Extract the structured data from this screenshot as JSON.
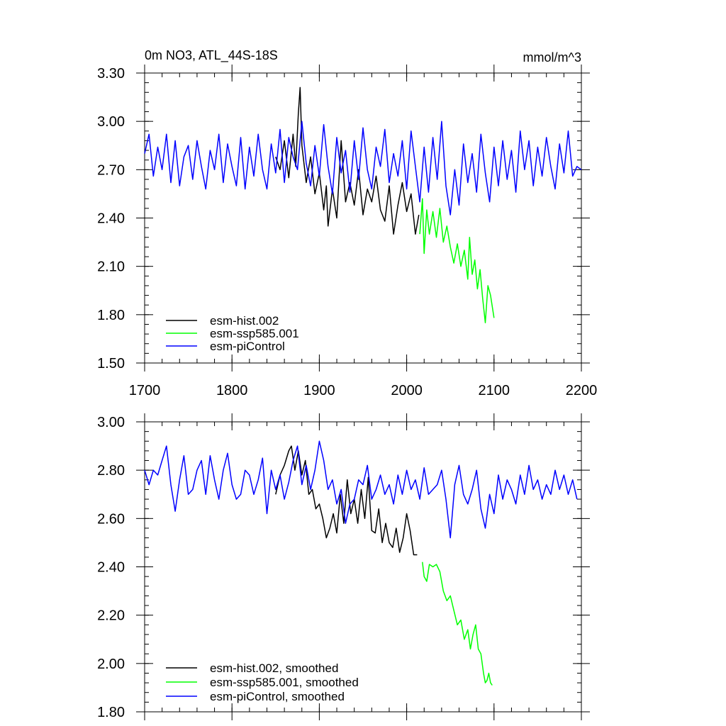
{
  "title": "0m NO3, ATL_44S-18S",
  "units": "mmol/m^3",
  "colors": {
    "hist": "#000000",
    "ssp": "#00ff00",
    "pic": "#0000ff"
  },
  "chart_data": [
    {
      "type": "line",
      "xlim": [
        1700,
        2200
      ],
      "ylim": [
        1.5,
        3.3
      ],
      "xticks": [
        "1700",
        "1800",
        "1900",
        "2000",
        "2100",
        "2200"
      ],
      "yticks": [
        "1.50",
        "1.80",
        "2.10",
        "2.40",
        "2.70",
        "3.00",
        "3.30"
      ],
      "legend": [
        "esm-hist.002",
        "esm-ssp585.001",
        "esm-piControl"
      ],
      "series": [
        {
          "name": "esm-hist.002",
          "color": "#000000",
          "x": [
            1850,
            1855,
            1860,
            1865,
            1870,
            1873,
            1876,
            1878,
            1880,
            1885,
            1890,
            1895,
            1900,
            1905,
            1908,
            1910,
            1915,
            1920,
            1925,
            1930,
            1935,
            1940,
            1945,
            1950,
            1955,
            1960,
            1965,
            1970,
            1975,
            1980,
            1985,
            1990,
            1995,
            2000,
            2005,
            2010,
            2014
          ],
          "values": [
            2.78,
            2.7,
            2.88,
            2.65,
            2.92,
            2.72,
            3.05,
            3.21,
            2.85,
            2.62,
            2.78,
            2.55,
            2.68,
            2.45,
            2.6,
            2.35,
            2.58,
            2.4,
            2.88,
            2.5,
            2.62,
            2.48,
            2.7,
            2.42,
            2.58,
            2.5,
            2.66,
            2.45,
            2.38,
            2.6,
            2.3,
            2.48,
            2.62,
            2.44,
            2.55,
            2.3,
            2.42
          ]
        },
        {
          "name": "esm-ssp585.001",
          "color": "#00ff00",
          "x": [
            2015,
            2018,
            2020,
            2023,
            2026,
            2030,
            2034,
            2038,
            2042,
            2046,
            2050,
            2054,
            2058,
            2062,
            2066,
            2070,
            2072,
            2075,
            2078,
            2081,
            2084,
            2087,
            2090,
            2093,
            2096,
            2100
          ],
          "values": [
            2.3,
            2.52,
            2.18,
            2.45,
            2.3,
            2.44,
            2.28,
            2.46,
            2.25,
            2.35,
            2.22,
            2.12,
            2.24,
            2.1,
            2.2,
            2.02,
            2.28,
            2.05,
            2.14,
            1.96,
            2.08,
            1.9,
            1.75,
            1.98,
            1.92,
            1.78
          ]
        },
        {
          "name": "esm-piControl",
          "color": "#0000ff",
          "x": [
            1700,
            1705,
            1710,
            1715,
            1720,
            1725,
            1730,
            1735,
            1740,
            1745,
            1750,
            1755,
            1760,
            1765,
            1770,
            1775,
            1780,
            1785,
            1790,
            1795,
            1800,
            1805,
            1810,
            1815,
            1820,
            1825,
            1830,
            1835,
            1840,
            1845,
            1850,
            1855,
            1860,
            1865,
            1870,
            1875,
            1880,
            1885,
            1890,
            1895,
            1900,
            1905,
            1910,
            1915,
            1920,
            1925,
            1930,
            1935,
            1940,
            1945,
            1950,
            1955,
            1960,
            1965,
            1970,
            1975,
            1980,
            1985,
            1990,
            1995,
            2000,
            2005,
            2010,
            2015,
            2020,
            2025,
            2030,
            2035,
            2040,
            2045,
            2050,
            2055,
            2060,
            2065,
            2070,
            2075,
            2080,
            2085,
            2090,
            2095,
            2100,
            2105,
            2110,
            2115,
            2120,
            2125,
            2130,
            2135,
            2140,
            2145,
            2150,
            2155,
            2160,
            2165,
            2170,
            2175,
            2180,
            2185,
            2190,
            2195,
            2200
          ],
          "values": [
            2.8,
            2.92,
            2.66,
            2.84,
            2.7,
            2.92,
            2.62,
            2.88,
            2.6,
            2.78,
            2.85,
            2.64,
            2.88,
            2.72,
            2.58,
            2.82,
            2.7,
            2.92,
            2.62,
            2.86,
            2.72,
            2.6,
            2.9,
            2.58,
            2.84,
            2.66,
            2.92,
            2.7,
            2.58,
            2.86,
            2.68,
            2.95,
            2.62,
            2.9,
            2.78,
            2.7,
            3.0,
            2.74,
            2.6,
            2.85,
            2.66,
            2.98,
            2.72,
            2.55,
            2.9,
            2.68,
            2.82,
            2.56,
            2.88,
            2.64,
            2.96,
            2.7,
            2.58,
            2.84,
            2.72,
            2.95,
            2.62,
            2.8,
            2.66,
            2.88,
            2.58,
            2.94,
            2.72,
            2.5,
            2.84,
            2.56,
            2.9,
            2.64,
            3.0,
            2.6,
            2.42,
            2.7,
            2.48,
            2.86,
            2.62,
            2.8,
            2.56,
            2.92,
            2.68,
            2.5,
            2.84,
            2.6,
            2.88,
            2.64,
            2.82,
            2.56,
            2.94,
            2.7,
            2.88,
            2.6,
            2.84,
            2.66,
            2.9,
            2.72,
            2.58,
            2.86,
            2.68,
            2.94,
            2.66,
            2.72,
            2.7
          ]
        }
      ]
    },
    {
      "type": "line",
      "xlim": [
        1700,
        2200
      ],
      "ylim": [
        1.8,
        3.0
      ],
      "xticks": [],
      "yticks": [
        "1.80",
        "2.00",
        "2.20",
        "2.40",
        "2.60",
        "2.80",
        "3.00"
      ],
      "legend": [
        "esm-hist.002, smoothed",
        "esm-ssp585.001, smoothed",
        "esm-piControl, smoothed"
      ],
      "series": [
        {
          "name": "esm-hist.002, smoothed",
          "color": "#000000",
          "x": [
            1850,
            1855,
            1860,
            1865,
            1868,
            1872,
            1876,
            1880,
            1884,
            1888,
            1892,
            1896,
            1900,
            1904,
            1908,
            1912,
            1916,
            1920,
            1924,
            1928,
            1932,
            1936,
            1940,
            1944,
            1948,
            1952,
            1956,
            1960,
            1964,
            1968,
            1972,
            1976,
            1980,
            1984,
            1988,
            1992,
            1996,
            2000,
            2004,
            2008,
            2012
          ],
          "values": [
            2.7,
            2.78,
            2.82,
            2.88,
            2.9,
            2.8,
            2.88,
            2.78,
            2.84,
            2.7,
            2.72,
            2.64,
            2.66,
            2.6,
            2.52,
            2.56,
            2.62,
            2.54,
            2.7,
            2.58,
            2.76,
            2.62,
            2.68,
            2.58,
            2.72,
            2.6,
            2.77,
            2.55,
            2.54,
            2.64,
            2.5,
            2.58,
            2.5,
            2.48,
            2.56,
            2.46,
            2.52,
            2.62,
            2.55,
            2.45,
            2.45
          ]
        },
        {
          "name": "esm-ssp585.001, smoothed",
          "color": "#00ff00",
          "x": [
            2018,
            2020,
            2023,
            2026,
            2030,
            2034,
            2038,
            2042,
            2046,
            2050,
            2054,
            2058,
            2062,
            2066,
            2070,
            2073,
            2076,
            2079,
            2082,
            2085,
            2088,
            2090,
            2092,
            2094,
            2096,
            2098
          ],
          "values": [
            2.42,
            2.36,
            2.34,
            2.41,
            2.4,
            2.41,
            2.38,
            2.3,
            2.26,
            2.28,
            2.22,
            2.16,
            2.18,
            2.1,
            2.14,
            2.06,
            2.12,
            2.16,
            2.06,
            2.04,
            1.96,
            1.92,
            1.93,
            1.96,
            1.92,
            1.91
          ]
        },
        {
          "name": "esm-piControl, smoothed",
          "color": "#0000ff",
          "x": [
            1700,
            1705,
            1710,
            1715,
            1720,
            1725,
            1730,
            1735,
            1740,
            1745,
            1750,
            1755,
            1760,
            1765,
            1770,
            1775,
            1780,
            1785,
            1790,
            1795,
            1800,
            1805,
            1810,
            1815,
            1820,
            1825,
            1830,
            1835,
            1840,
            1845,
            1850,
            1855,
            1860,
            1865,
            1870,
            1875,
            1880,
            1885,
            1890,
            1895,
            1900,
            1905,
            1910,
            1915,
            1920,
            1925,
            1930,
            1935,
            1940,
            1945,
            1950,
            1955,
            1960,
            1965,
            1970,
            1975,
            1980,
            1985,
            1990,
            1995,
            2000,
            2005,
            2010,
            2015,
            2020,
            2025,
            2030,
            2035,
            2040,
            2045,
            2050,
            2055,
            2060,
            2065,
            2070,
            2075,
            2080,
            2085,
            2090,
            2095,
            2100,
            2105,
            2110,
            2115,
            2120,
            2125,
            2130,
            2135,
            2140,
            2145,
            2150,
            2155,
            2160,
            2165,
            2170,
            2175,
            2180,
            2185,
            2190,
            2195
          ],
          "values": [
            2.8,
            2.74,
            2.8,
            2.78,
            2.84,
            2.9,
            2.74,
            2.63,
            2.76,
            2.86,
            2.7,
            2.72,
            2.8,
            2.84,
            2.7,
            2.86,
            2.76,
            2.68,
            2.8,
            2.87,
            2.74,
            2.68,
            2.7,
            2.8,
            2.78,
            2.7,
            2.76,
            2.85,
            2.62,
            2.8,
            2.72,
            2.78,
            2.68,
            2.75,
            2.84,
            2.9,
            2.74,
            2.82,
            2.72,
            2.8,
            2.92,
            2.84,
            2.72,
            2.76,
            2.66,
            2.72,
            2.58,
            2.66,
            2.68,
            2.76,
            2.74,
            2.82,
            2.68,
            2.72,
            2.78,
            2.7,
            2.74,
            2.66,
            2.78,
            2.7,
            2.8,
            2.72,
            2.76,
            2.68,
            2.81,
            2.7,
            2.72,
            2.74,
            2.8,
            2.68,
            2.52,
            2.74,
            2.82,
            2.7,
            2.66,
            2.72,
            2.8,
            2.64,
            2.56,
            2.7,
            2.62,
            2.78,
            2.68,
            2.76,
            2.72,
            2.66,
            2.78,
            2.7,
            2.82,
            2.72,
            2.76,
            2.68,
            2.74,
            2.7,
            2.8,
            2.72,
            2.78,
            2.7,
            2.76,
            2.68
          ]
        }
      ]
    }
  ]
}
